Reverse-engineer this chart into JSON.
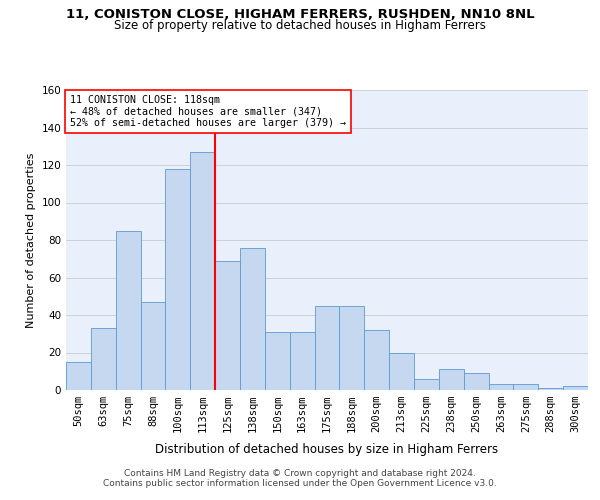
{
  "title": "11, CONISTON CLOSE, HIGHAM FERRERS, RUSHDEN, NN10 8NL",
  "subtitle": "Size of property relative to detached houses in Higham Ferrers",
  "xlabel": "Distribution of detached houses by size in Higham Ferrers",
  "ylabel": "Number of detached properties",
  "footer1": "Contains HM Land Registry data © Crown copyright and database right 2024.",
  "footer2": "Contains public sector information licensed under the Open Government Licence v3.0.",
  "categories": [
    "50sqm",
    "63sqm",
    "75sqm",
    "88sqm",
    "100sqm",
    "113sqm",
    "125sqm",
    "138sqm",
    "150sqm",
    "163sqm",
    "175sqm",
    "188sqm",
    "200sqm",
    "213sqm",
    "225sqm",
    "238sqm",
    "250sqm",
    "263sqm",
    "275sqm",
    "288sqm",
    "300sqm"
  ],
  "values": [
    15,
    33,
    85,
    47,
    118,
    127,
    69,
    76,
    31,
    31,
    45,
    45,
    32,
    20,
    6,
    11,
    9,
    3,
    3,
    1,
    2
  ],
  "bar_color": "#c5d8f0",
  "bar_edge_color": "#5b9bd5",
  "vline_index": 5.5,
  "vline_color": "red",
  "annotation_line1": "11 CONISTON CLOSE: 118sqm",
  "annotation_line2": "← 48% of detached houses are smaller (347)",
  "annotation_line3": "52% of semi-detached houses are larger (379) →",
  "annotation_box_color": "white",
  "annotation_box_edge_color": "red",
  "ylim": [
    0,
    160
  ],
  "yticks": [
    0,
    20,
    40,
    60,
    80,
    100,
    120,
    140,
    160
  ],
  "background_color": "#eaf0fb",
  "grid_color": "#cccccc",
  "title_fontsize": 9.5,
  "subtitle_fontsize": 8.5,
  "ylabel_fontsize": 8,
  "xlabel_fontsize": 8.5,
  "tick_fontsize": 7.5,
  "footer_fontsize": 6.5
}
